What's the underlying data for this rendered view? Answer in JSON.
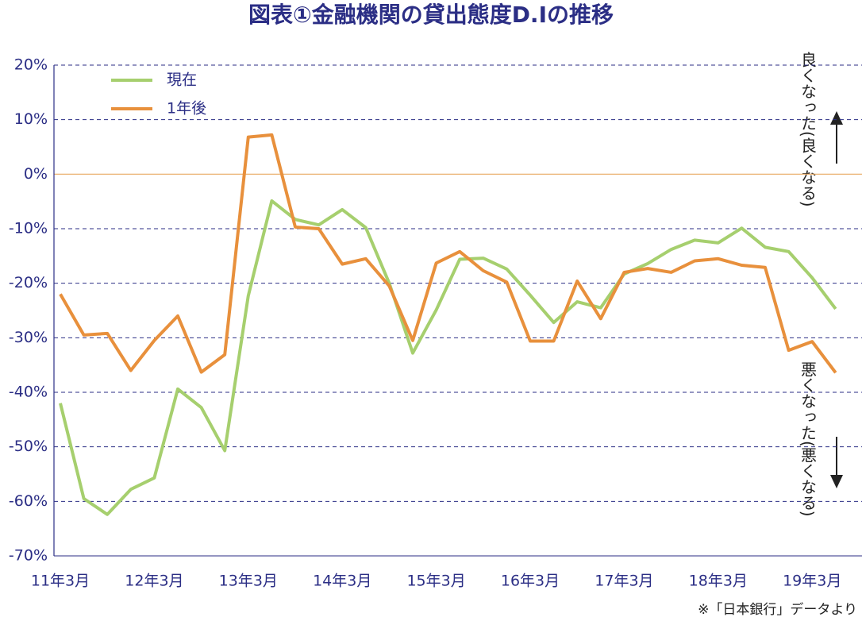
{
  "chart_data": {
    "type": "line",
    "title": "図表①金融機関の貸出態度D.Iの推移",
    "categories": [
      "11年3月",
      null,
      null,
      null,
      "12年3月",
      null,
      null,
      null,
      "13年3月",
      null,
      null,
      null,
      "14年3月",
      null,
      null,
      null,
      "15年3月",
      null,
      null,
      null,
      "16年3月",
      null,
      null,
      null,
      "17年3月",
      null,
      null,
      null,
      "18年3月",
      null,
      null,
      null,
      "19年3月",
      null
    ],
    "series": [
      {
        "name": "現在",
        "color": "#a6cf6e",
        "values": [
          -42,
          -59.5,
          -62.4,
          -57.8,
          -55.7,
          -39.4,
          -42.8,
          -50.7,
          -22.3,
          -4.9,
          -8.3,
          -9.3,
          -6.5,
          -9.8,
          -20,
          -32.8,
          -24.9,
          -15.6,
          -15.4,
          -17.4,
          -22.2,
          -27.2,
          -23.4,
          -24.5,
          -18.3,
          -16.4,
          -13.8,
          -12.1,
          -12.6,
          -9.9,
          -13.4,
          -14.2,
          -19,
          -24.7
        ]
      },
      {
        "name": "1年後",
        "color": "#e8903c",
        "values": [
          -22,
          -29.5,
          -29.2,
          -36,
          -30.5,
          -26,
          -36.3,
          -33.1,
          6.8,
          7.2,
          -9.7,
          -10,
          -16.5,
          -15.5,
          -20.5,
          -30.5,
          -16.3,
          -14.2,
          -17.7,
          -19.8,
          -30.6,
          -30.6,
          -19.6,
          -26.5,
          -18,
          -17.3,
          -18,
          -15.9,
          -15.5,
          -16.7,
          -17.1,
          -32.3,
          -30.7,
          -36.4
        ]
      }
    ],
    "ylim": [
      -70,
      20
    ],
    "yticks": [
      {
        "value": -70,
        "label": "-70%"
      },
      {
        "value": -60,
        "label": "-60%"
      },
      {
        "value": -50,
        "label": "-50%"
      },
      {
        "value": -40,
        "label": "-40%"
      },
      {
        "value": -30,
        "label": "-30%"
      },
      {
        "value": -20,
        "label": "-20%"
      },
      {
        "value": -10,
        "label": "-10%"
      },
      {
        "value": 0,
        "label": "0%"
      },
      {
        "value": 10,
        "label": "10%"
      },
      {
        "value": 20,
        "label": "20%"
      }
    ],
    "grid": true,
    "legend": "top-left",
    "annotations": [
      "良くなった(良くなる)",
      "悪くなった(悪くなる)"
    ],
    "source": "※「日本銀行」データより"
  }
}
